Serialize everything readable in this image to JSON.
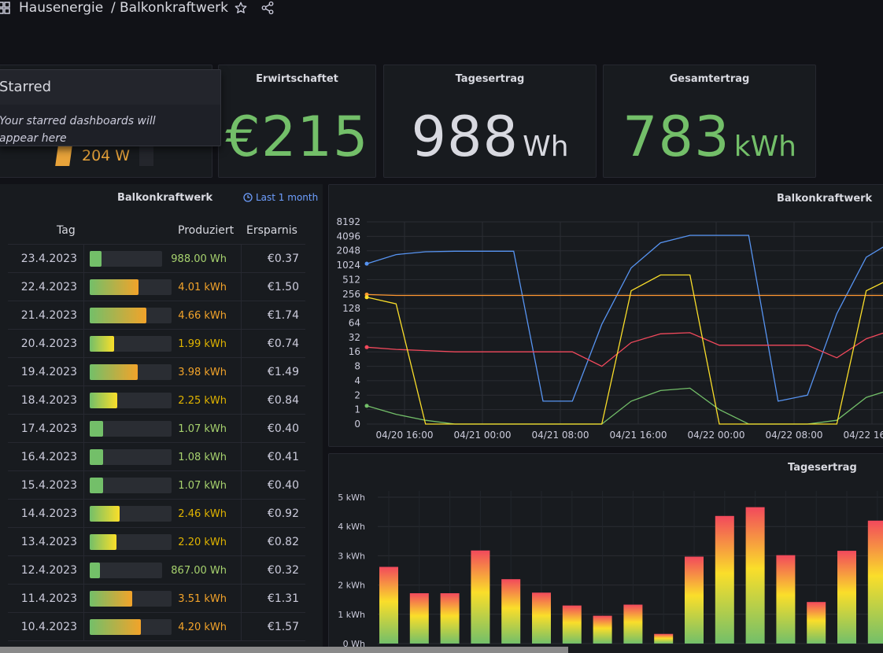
{
  "breadcrumb": {
    "folder": "Hausenergie",
    "separator": "/",
    "dashboard": "Balkonkraftwerk"
  },
  "popover": {
    "title": "Starred",
    "message": "Your starred dashboards will appear here"
  },
  "gauge_panel": {
    "value_text": "204 W",
    "color": "#e8a33a"
  },
  "stats": {
    "erwirtschaftet": {
      "title": "Erwirtschaftet",
      "value": "€215",
      "color": "#73bf69"
    },
    "tagesertrag": {
      "title": "Tagesertrag",
      "value": "988",
      "unit": "Wh",
      "color": "#d8d9e0"
    },
    "gesamtertrag": {
      "title": "Gesamtertrag",
      "value": "783",
      "unit": "kWh",
      "color": "#73bf69"
    }
  },
  "table": {
    "title": "Balkonkraftwerk",
    "time_range": "Last 1 month",
    "headers": {
      "tag": "Tag",
      "produziert": "Produziert",
      "ersparnis": "Ersparnis"
    },
    "max_kwh": 4.66,
    "rows": [
      {
        "tag": "23.4.2023",
        "produziert": "988.00 Wh",
        "kwh": 0.988,
        "ersparnis": "€0.37"
      },
      {
        "tag": "22.4.2023",
        "produziert": "4.01 kWh",
        "kwh": 4.01,
        "ersparnis": "€1.50"
      },
      {
        "tag": "21.4.2023",
        "produziert": "4.66 kWh",
        "kwh": 4.66,
        "ersparnis": "€1.74"
      },
      {
        "tag": "20.4.2023",
        "produziert": "1.99 kWh",
        "kwh": 1.99,
        "ersparnis": "€0.74"
      },
      {
        "tag": "19.4.2023",
        "produziert": "3.98 kWh",
        "kwh": 3.98,
        "ersparnis": "€1.49"
      },
      {
        "tag": "18.4.2023",
        "produziert": "2.25 kWh",
        "kwh": 2.25,
        "ersparnis": "€0.84"
      },
      {
        "tag": "17.4.2023",
        "produziert": "1.07 kWh",
        "kwh": 1.07,
        "ersparnis": "€0.40"
      },
      {
        "tag": "16.4.2023",
        "produziert": "1.08 kWh",
        "kwh": 1.08,
        "ersparnis": "€0.41"
      },
      {
        "tag": "15.4.2023",
        "produziert": "1.07 kWh",
        "kwh": 1.07,
        "ersparnis": "€0.40"
      },
      {
        "tag": "14.4.2023",
        "produziert": "2.46 kWh",
        "kwh": 2.46,
        "ersparnis": "€0.92"
      },
      {
        "tag": "13.4.2023",
        "produziert": "2.20 kWh",
        "kwh": 2.2,
        "ersparnis": "€0.82"
      },
      {
        "tag": "12.4.2023",
        "produziert": "867.00 Wh",
        "kwh": 0.867,
        "ersparnis": "€0.32"
      },
      {
        "tag": "11.4.2023",
        "produziert": "3.51 kWh",
        "kwh": 3.51,
        "ersparnis": "€1.31"
      },
      {
        "tag": "10.4.2023",
        "produziert": "4.20 kWh",
        "kwh": 4.2,
        "ersparnis": "€1.57"
      }
    ]
  },
  "chart_data": [
    {
      "type": "line",
      "title": "Balkonkraftwerk",
      "y_scale": "log2",
      "y_ticks": [
        "8192",
        "4096",
        "2048",
        "1024",
        "512",
        "256",
        "128",
        "64",
        "32",
        "16",
        "8",
        "4",
        "2",
        "1",
        "0"
      ],
      "x_ticks": [
        "04/20 16:00",
        "04/21 00:00",
        "04/21 08:00",
        "04/21 16:00",
        "04/22 00:00",
        "04/22 08:00",
        "04/22 16:00"
      ],
      "grid": true,
      "series": [
        {
          "color": "#5794f2",
          "values": [
            1100,
            1700,
            1950,
            2000,
            2000,
            2000,
            1.5,
            1.5,
            60,
            900,
            3000,
            4300,
            4300,
            4300,
            1.5,
            2,
            100,
            1500,
            3500
          ]
        },
        {
          "color": "#ff9830",
          "values": [
            250,
            240,
            240,
            240,
            240,
            240,
            240,
            240,
            240,
            240,
            240,
            240,
            240,
            240,
            240,
            240,
            240,
            240,
            240
          ]
        },
        {
          "color": "#f2495c",
          "values": [
            20,
            18,
            17,
            16,
            16,
            16,
            16,
            16,
            8,
            25,
            38,
            40,
            22,
            22,
            22,
            22,
            12,
            30,
            48
          ]
        },
        {
          "color": "#73bf69",
          "values": [
            1.2,
            0.8,
            0.6,
            0.5,
            0.4,
            0.4,
            0.4,
            0.4,
            0.5,
            1.5,
            2.5,
            2.8,
            1.0,
            0.5,
            0.5,
            0.5,
            0.6,
            1.8,
            2.8
          ]
        },
        {
          "color": "#fade2a",
          "values": [
            220,
            160,
            0,
            0,
            0,
            0,
            0,
            0,
            0,
            300,
            640,
            640,
            0,
            0,
            0,
            0,
            0,
            300,
            600
          ]
        }
      ]
    },
    {
      "type": "bar",
      "title": "Tagesertrag",
      "ylim": [
        0,
        5
      ],
      "y_ticks": [
        "5 kWh",
        "4 kWh",
        "3 kWh",
        "2 kWh",
        "1 kWh",
        "0 Wh"
      ],
      "values": [
        2.62,
        1.72,
        1.72,
        3.18,
        2.2,
        1.74,
        1.3,
        0.95,
        1.33,
        0.33,
        2.97,
        4.36,
        4.66,
        3.02,
        1.42,
        3.17,
        4.2
      ],
      "grid": true,
      "gradient": [
        "#73bf69",
        "#fade2a",
        "#f2495c"
      ]
    }
  ]
}
